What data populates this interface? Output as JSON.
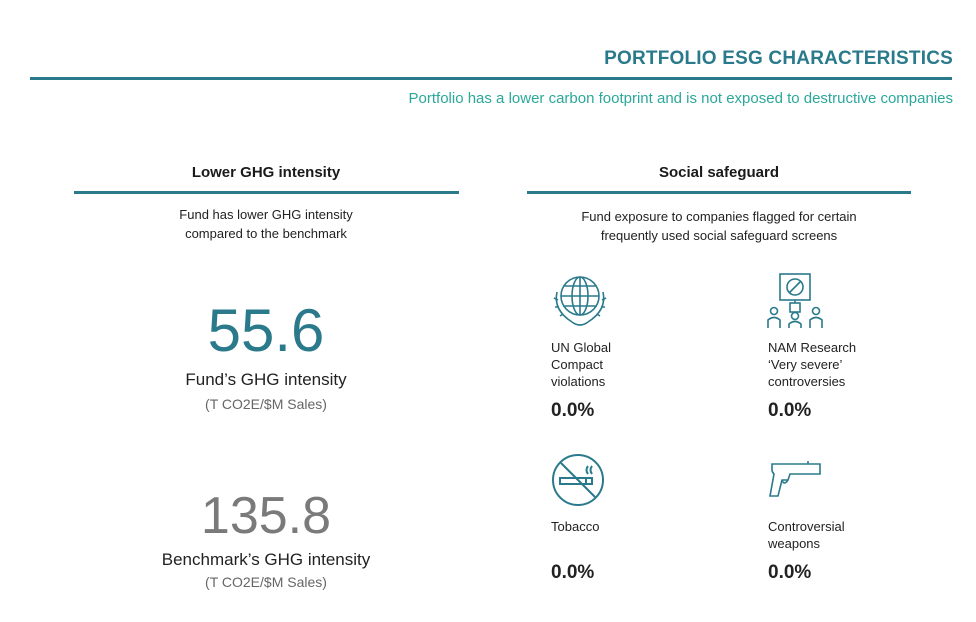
{
  "header": {
    "title": "PORTFOLIO ESG CHARACTERISTICS",
    "subtitle": "Portfolio has a lower carbon footprint and is not exposed to destructive companies"
  },
  "ghg": {
    "heading": "Lower GHG intensity",
    "description_line1": "Fund has lower GHG intensity",
    "description_line2": "compared to  the benchmark",
    "fund_value": "55.6",
    "fund_label": "Fund’s GHG intensity",
    "fund_unit": "(T CO2E/$M Sales)",
    "benchmark_value": "135.8",
    "benchmark_label": "Benchmark’s GHG intensity",
    "benchmark_unit": "(T CO2E/$M Sales)"
  },
  "social": {
    "heading": "Social safeguard",
    "description_line1": "Fund exposure to companies flagged for certain",
    "description_line2": "frequently used social safeguard screens",
    "items": [
      {
        "icon": "un-globe-icon",
        "label_lines": [
          "UN Global",
          "Compact",
          "violations"
        ],
        "value": "0.0%"
      },
      {
        "icon": "protest-sign-icon",
        "label_lines": [
          "NAM Research",
          "‘Very severe’",
          "controversies"
        ],
        "value": "0.0%"
      },
      {
        "icon": "no-smoking-icon",
        "label_lines": [
          "Tobacco"
        ],
        "value": "0.0%"
      },
      {
        "icon": "handgun-icon",
        "label_lines": [
          "Controversial",
          "weapons"
        ],
        "value": "0.0%"
      }
    ]
  },
  "colors": {
    "accent": "#2a7a8c",
    "subtitle": "#2ba89a",
    "benchmark": "#7a7a7a"
  }
}
